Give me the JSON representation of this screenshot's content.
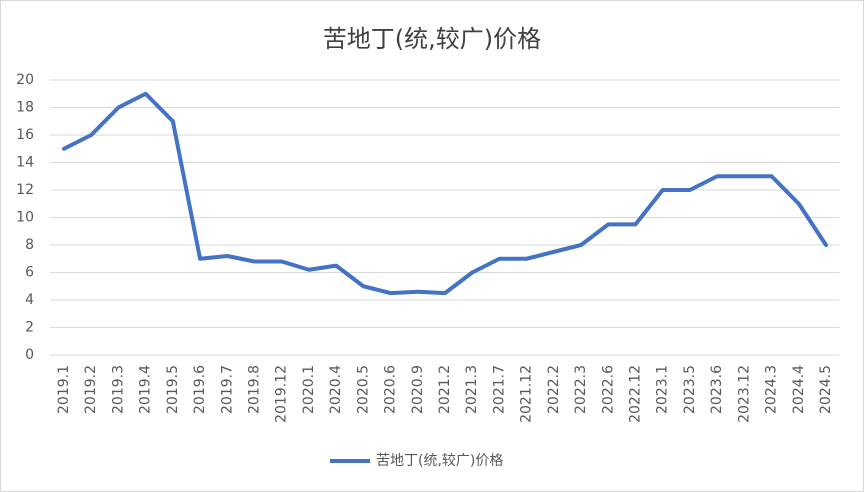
{
  "chart_data": {
    "type": "line",
    "title": "苦地丁(统,较广)价格",
    "categories": [
      "2019.1",
      "2019.2",
      "2019.3",
      "2019.4",
      "2019.5",
      "2019.6",
      "2019.7",
      "2019.8",
      "2019.12",
      "2020.1",
      "2020.4",
      "2020.5",
      "2020.6",
      "2020.9",
      "2021.2",
      "2021.3",
      "2021.7",
      "2021.12",
      "2022.2",
      "2022.3",
      "2022.6",
      "2022.12",
      "2023.1",
      "2023.5",
      "2023.6",
      "2023.12",
      "2024.3",
      "2024.4",
      "2024.5"
    ],
    "series": [
      {
        "name": "苦地丁(统,较广)价格",
        "color": "#4472c4",
        "values": [
          15,
          16,
          18,
          19,
          17,
          7,
          7.2,
          6.8,
          6.8,
          6.2,
          6.5,
          5,
          4.5,
          4.6,
          4.5,
          6,
          7,
          7,
          7.5,
          8,
          9.5,
          9.5,
          12,
          12,
          13,
          13,
          13,
          11,
          8
        ]
      }
    ],
    "ylim": [
      0,
      20
    ],
    "yticks": [
      0,
      2,
      4,
      6,
      8,
      10,
      12,
      14,
      16,
      18,
      20
    ],
    "grid": true,
    "legend": "bottom"
  }
}
